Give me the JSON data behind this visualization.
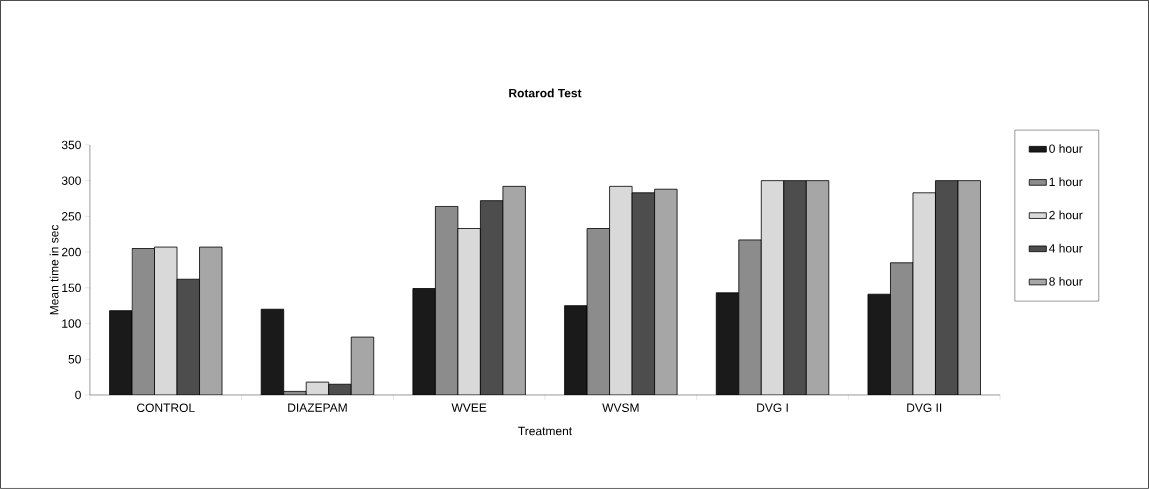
{
  "chart_data": {
    "type": "bar",
    "title": "Rotarod Test",
    "xlabel": "Treatment",
    "ylabel": "Mean time in sec",
    "categories": [
      "CONTROL",
      "DIAZEPAM",
      "WVEE",
      "WVSM",
      "DVG I",
      "DVG II"
    ],
    "series": [
      {
        "name": "0 hour",
        "color": "#1a1a1a",
        "values": [
          118,
          120,
          149,
          125,
          143,
          141
        ]
      },
      {
        "name": "1 hour",
        "color": "#8c8c8c",
        "values": [
          205,
          5,
          264,
          233,
          217,
          185
        ]
      },
      {
        "name": "2 hour",
        "color": "#d9d9d9",
        "values": [
          207,
          18,
          233,
          292,
          300,
          283
        ]
      },
      {
        "name": "4 hour",
        "color": "#4d4d4d",
        "values": [
          162,
          15,
          272,
          283,
          300,
          300
        ]
      },
      {
        "name": "8 hour",
        "color": "#a6a6a6",
        "values": [
          207,
          81,
          292,
          288,
          300,
          300
        ]
      }
    ],
    "ylim": [
      0,
      350
    ],
    "yticks": [
      0,
      50,
      100,
      150,
      200,
      250,
      300,
      350
    ],
    "legend": "right",
    "grid": false
  }
}
